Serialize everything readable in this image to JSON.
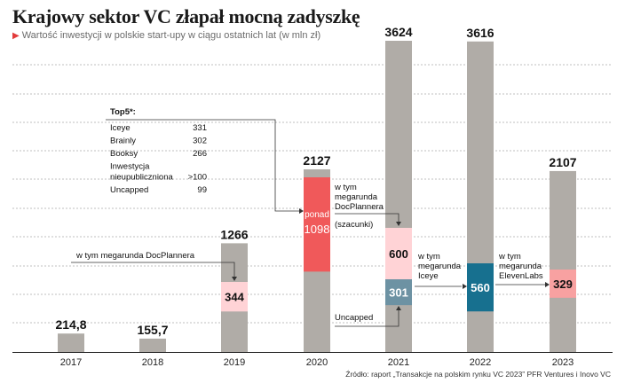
{
  "header": {
    "title": "Krajowy sektor VC złapał mocną zadyszkę",
    "subtitle": "Wartość inwestycji w polskie start-upy w ciągu ostatnich lat (w mln zł)"
  },
  "footer": {
    "source": "Źródło: raport „Transakcje na polskim rynku VC 2023” PFR Ventures i Inovo VC"
  },
  "colors": {
    "bar": "#b0aca7",
    "segment_red": "#f0595a",
    "segment_pink": "#ffd3d6",
    "segment_salmon": "#f8a1a1",
    "segment_slate": "#6d92a3",
    "segment_teal": "#17708f",
    "grid": "#aaaaaa"
  },
  "chart_data": {
    "type": "bar",
    "categories": [
      "2017",
      "2018",
      "2019",
      "2020",
      "2021",
      "2022",
      "2023"
    ],
    "values": [
      214.8,
      155.7,
      1266,
      2127,
      3624,
      3616,
      2107
    ],
    "value_labels": [
      "214,8",
      "155,7",
      "1266",
      "2127",
      "3624",
      "3616",
      "2107"
    ],
    "ylim": [
      0,
      3624
    ],
    "grid": true,
    "segments": [
      {
        "category": "2019",
        "from": 0,
        "value": 344,
        "label": "344",
        "color": "#ffd3d6"
      },
      {
        "category": "2020",
        "from": 0,
        "value": 1098,
        "label": "1098",
        "prefix": "ponad",
        "color": "#f0595a"
      },
      {
        "category": "2021",
        "from": 0,
        "value": 600,
        "label": "600",
        "color": "#ffd3d6"
      },
      {
        "category": "2021",
        "from": 0,
        "value": 301,
        "label": "301",
        "color": "#6d92a3"
      },
      {
        "category": "2022",
        "from": 0,
        "value": 560,
        "label": "560",
        "color": "#17708f"
      },
      {
        "category": "2023",
        "from": 0,
        "value": 329,
        "label": "329",
        "color": "#f8a1a1"
      }
    ],
    "annotations": {
      "docplanner_2019": "w tym megarunda DocPlannera",
      "docplanner_2021": [
        "w tym",
        "megarunda",
        "DocPlannera"
      ],
      "szacunki": "(szacunki)",
      "iceye": [
        "w tym",
        "megarunda",
        "Iceye"
      ],
      "elevenlabs": [
        "w tym",
        "megarunda",
        "ElevenLabs"
      ],
      "uncapped": "Uncapped"
    },
    "top5": {
      "title": "Top5*:",
      "items": [
        {
          "name": "Iceye",
          "value": "331"
        },
        {
          "name": "Brainly",
          "value": "302"
        },
        {
          "name": "Booksy",
          "value": "266"
        },
        {
          "name": "Inwestycja",
          "name2": "nieupubliczniona",
          "value": ">100"
        },
        {
          "name": "Uncapped",
          "value": "99"
        }
      ]
    }
  }
}
